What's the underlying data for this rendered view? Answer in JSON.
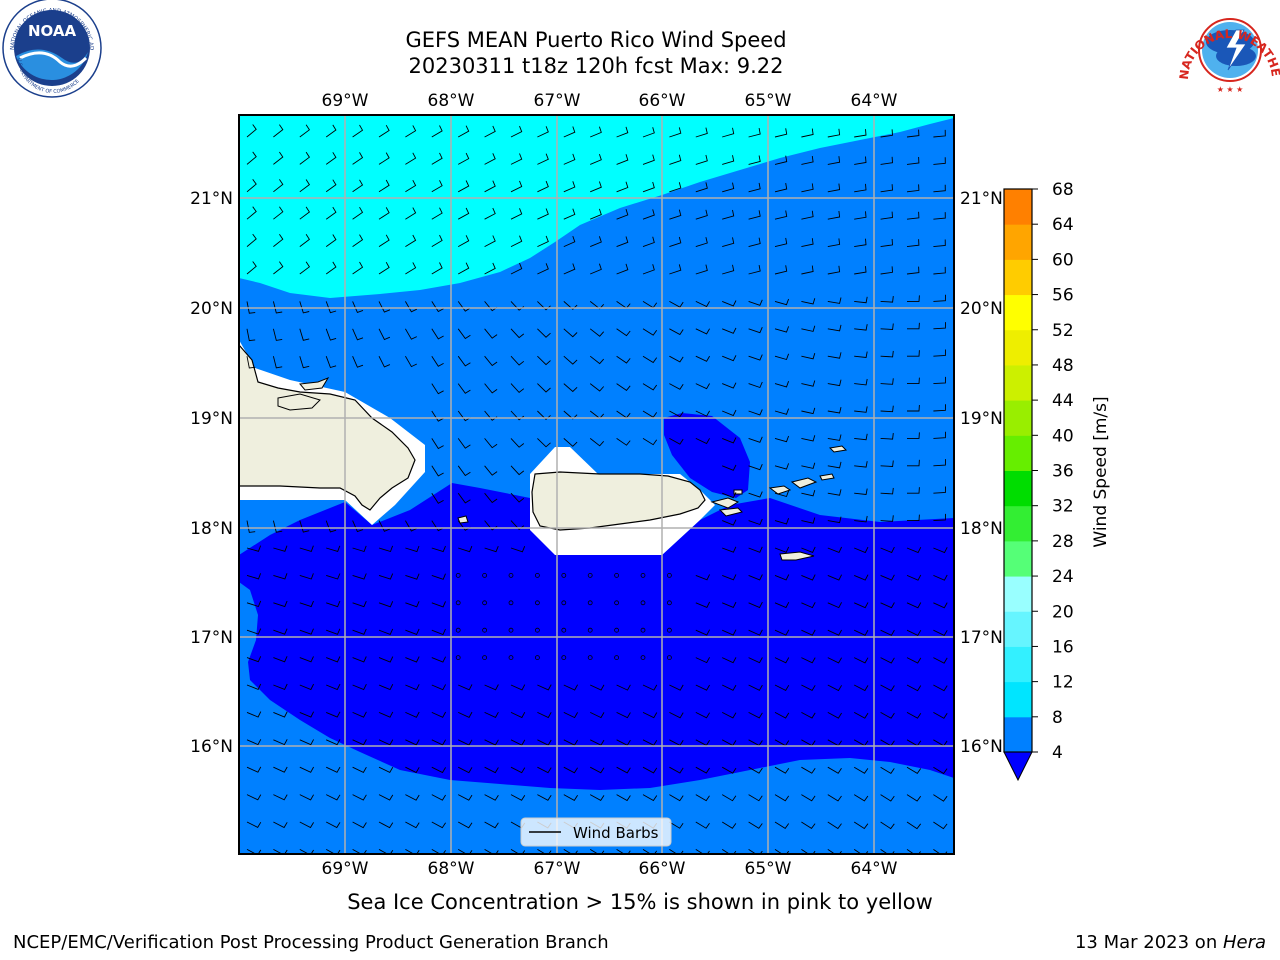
{
  "title_line1": "GEFS MEAN Puerto Rico Wind Speed",
  "title_line2": "20230311 t18z 120h fcst   Max: 9.22",
  "caption": "Sea Ice Concentration > 15% is shown in pink to yellow",
  "footer_left": "NCEP/EMC/Verification Post Processing Product Generation Branch",
  "footer_date": "13 Mar 2023 on ",
  "footer_machine": "Hera",
  "logo_left_text": "NOAA",
  "logo_left_ring": "NATIONAL OCEANIC AND ATMOSPHERIC ADMINISTRATION",
  "logo_left_ring_bottom": "U.S. DEPARTMENT OF COMMERCE",
  "logo_right_ring": "NATIONAL WEATHER SERVICE",
  "legend_label": "Wind Barbs",
  "colorbar": {
    "label": "Wind Speed [m/s]",
    "ticks": [
      "4",
      "8",
      "12",
      "16",
      "20",
      "24",
      "28",
      "32",
      "36",
      "40",
      "44",
      "48",
      "52",
      "56",
      "60",
      "64",
      "68"
    ],
    "colors": [
      "#0080ff",
      "#00e5ff",
      "#33f0ff",
      "#66f5ff",
      "#99ffff",
      "#55ff77",
      "#33ee33",
      "#00dd00",
      "#66ee00",
      "#99ee00",
      "#ccf000",
      "#eeee00",
      "#ffff00",
      "#ffcc00",
      "#ffa500",
      "#ff8000",
      "#ff5000",
      "#ff2a00",
      "#ff0000"
    ],
    "under_color": "#0000ff"
  },
  "chart_data": {
    "type": "heatmap",
    "lon_range": [
      -70.0,
      -63.25
    ],
    "lat_range": [
      15.0,
      21.75
    ],
    "x_ticks": [
      "69°W",
      "68°W",
      "67°W",
      "66°W",
      "65°W",
      "64°W"
    ],
    "y_ticks": [
      "21°N",
      "20°N",
      "19°N",
      "18°N",
      "17°N",
      "16°N"
    ],
    "grid": true,
    "legend": "bottom-center",
    "max_value": 9.22,
    "levels_present": [
      "<4",
      "4-8",
      "8-12"
    ],
    "colors": {
      "lt4": "#0000ff",
      "4to8": "#0080ff",
      "8to12": "#00ffff",
      "land": "#efefde"
    }
  }
}
